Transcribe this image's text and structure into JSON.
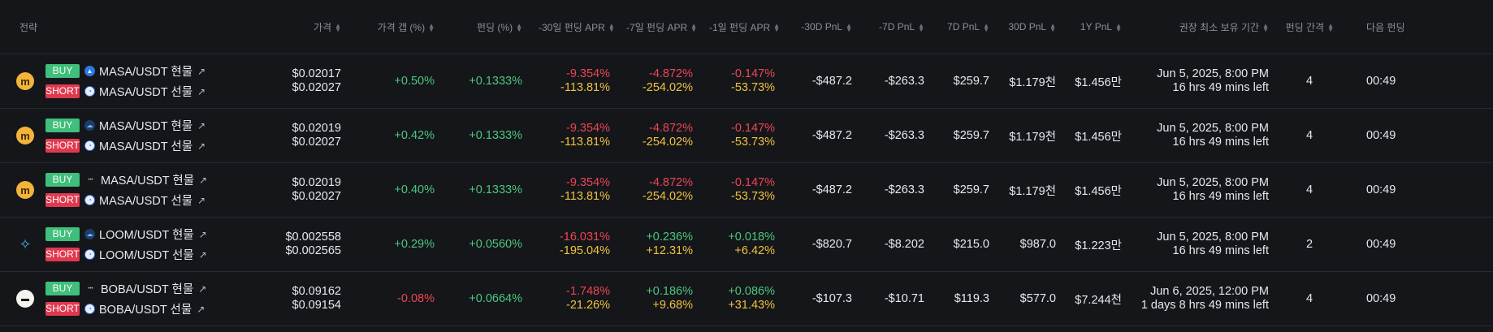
{
  "headers": {
    "strategy": "전략",
    "price": "가격",
    "price_gap": "가격 갭 (%)",
    "funding": "펀딩 (%)",
    "apr30": "-30일 펀딩 APR",
    "apr7": "-7일 펀딩 APR",
    "apr1": "-1일 펀딩 APR",
    "pnl_m30": "-30D PnL",
    "pnl_m7": "-7D PnL",
    "pnl_7": "7D PnL",
    "pnl_30": "30D PnL",
    "pnl_1y": "1Y PnL",
    "hold": "권장 최소 보유 기간",
    "interval": "펀딩 간격",
    "next": "다음 펀딩"
  },
  "colors": {
    "positive": "#4cc77e",
    "negative": "#ef4454",
    "warning": "#f2c23d",
    "buy": "#3fbf7a",
    "short": "#e0394f"
  },
  "rows": [
    {
      "coin_icon": "masa-coin-icon",
      "buy_badge": "BUY",
      "buy_exchange_icon": "flame-exchange-icon",
      "buy_label": "MASA/USDT 현물",
      "short_badge": "SHORT",
      "short_exchange_icon": "futures-exchange-icon",
      "short_label": "MASA/USDT 선물",
      "price1": "$0.02017",
      "price2": "$0.02027",
      "gap": "+0.50%",
      "funding": "+0.1333%",
      "apr30_a": "-9.354%",
      "apr30_b": "-113.81%",
      "apr7_a": "-4.872%",
      "apr7_b": "-254.02%",
      "apr1_a": "-0.147%",
      "apr1_b": "-53.73%",
      "pnl_m30": "-$487.2",
      "pnl_m7": "-$263.3",
      "pnl_7": "$259.7",
      "pnl_30": "$1.179천",
      "pnl_1y": "$1.456만",
      "hold_date": "Jun 5, 2025, 8:00 PM",
      "hold_left": "16 hrs 49 mins left",
      "interval": "4",
      "next": "00:49"
    },
    {
      "coin_icon": "masa-coin-icon",
      "buy_badge": "BUY",
      "buy_exchange_icon": "cloud-exchange-icon",
      "buy_label": "MASA/USDT 현물",
      "short_badge": "SHORT",
      "short_exchange_icon": "futures-exchange-icon",
      "short_label": "MASA/USDT 선물",
      "price1": "$0.02019",
      "price2": "$0.02027",
      "gap": "+0.42%",
      "funding": "+0.1333%",
      "apr30_a": "-9.354%",
      "apr30_b": "-113.81%",
      "apr7_a": "-4.872%",
      "apr7_b": "-254.02%",
      "apr1_a": "-0.147%",
      "apr1_b": "-53.73%",
      "pnl_m30": "-$487.2",
      "pnl_m7": "-$263.3",
      "pnl_7": "$259.7",
      "pnl_30": "$1.179천",
      "pnl_1y": "$1.456만",
      "hold_date": "Jun 5, 2025, 8:00 PM",
      "hold_left": "16 hrs 49 mins left",
      "interval": "4",
      "next": "00:49"
    },
    {
      "coin_icon": "masa-coin-icon",
      "buy_badge": "BUY",
      "buy_exchange_icon": "text-exchange-icon",
      "buy_label": "MASA/USDT 현물",
      "short_badge": "SHORT",
      "short_exchange_icon": "futures-exchange-icon",
      "short_label": "MASA/USDT 선물",
      "price1": "$0.02019",
      "price2": "$0.02027",
      "gap": "+0.40%",
      "funding": "+0.1333%",
      "apr30_a": "-9.354%",
      "apr30_b": "-113.81%",
      "apr7_a": "-4.872%",
      "apr7_b": "-254.02%",
      "apr1_a": "-0.147%",
      "apr1_b": "-53.73%",
      "pnl_m30": "-$487.2",
      "pnl_m7": "-$263.3",
      "pnl_7": "$259.7",
      "pnl_30": "$1.179천",
      "pnl_1y": "$1.456만",
      "hold_date": "Jun 5, 2025, 8:00 PM",
      "hold_left": "16 hrs 49 mins left",
      "interval": "4",
      "next": "00:49"
    },
    {
      "coin_icon": "loom-coin-icon",
      "buy_badge": "BUY",
      "buy_exchange_icon": "cloud-exchange-icon",
      "buy_label": "LOOM/USDT 현물",
      "short_badge": "SHORT",
      "short_exchange_icon": "futures-exchange-icon",
      "short_label": "LOOM/USDT 선물",
      "price1": "$0.002558",
      "price2": "$0.002565",
      "gap": "+0.29%",
      "funding": "+0.0560%",
      "apr30_a": "-16.031%",
      "apr30_b": "-195.04%",
      "apr7_a": "+0.236%",
      "apr7_b": "+12.31%",
      "apr1_a": "+0.018%",
      "apr1_b": "+6.42%",
      "pnl_m30": "-$820.7",
      "pnl_m7": "-$8.202",
      "pnl_7": "$215.0",
      "pnl_30": "$987.0",
      "pnl_1y": "$1.223만",
      "hold_date": "Jun 5, 2025, 8:00 PM",
      "hold_left": "16 hrs 49 mins left",
      "interval": "2",
      "next": "00:49"
    },
    {
      "coin_icon": "boba-coin-icon",
      "buy_badge": "BUY",
      "buy_exchange_icon": "text-exchange-icon",
      "buy_label": "BOBA/USDT 현물",
      "short_badge": "SHORT",
      "short_exchange_icon": "futures-exchange-icon",
      "short_label": "BOBA/USDT 선물",
      "price1": "$0.09162",
      "price2": "$0.09154",
      "gap": "-0.08%",
      "funding": "+0.0664%",
      "apr30_a": "-1.748%",
      "apr30_b": "-21.26%",
      "apr7_a": "+0.186%",
      "apr7_b": "+9.68%",
      "apr1_a": "+0.086%",
      "apr1_b": "+31.43%",
      "pnl_m30": "-$107.3",
      "pnl_m7": "-$10.71",
      "pnl_7": "$119.3",
      "pnl_30": "$577.0",
      "pnl_1y": "$7.244천",
      "hold_date": "Jun 6, 2025, 12:00 PM",
      "hold_left": "1 days 8 hrs 49 mins left",
      "interval": "4",
      "next": "00:49"
    }
  ]
}
